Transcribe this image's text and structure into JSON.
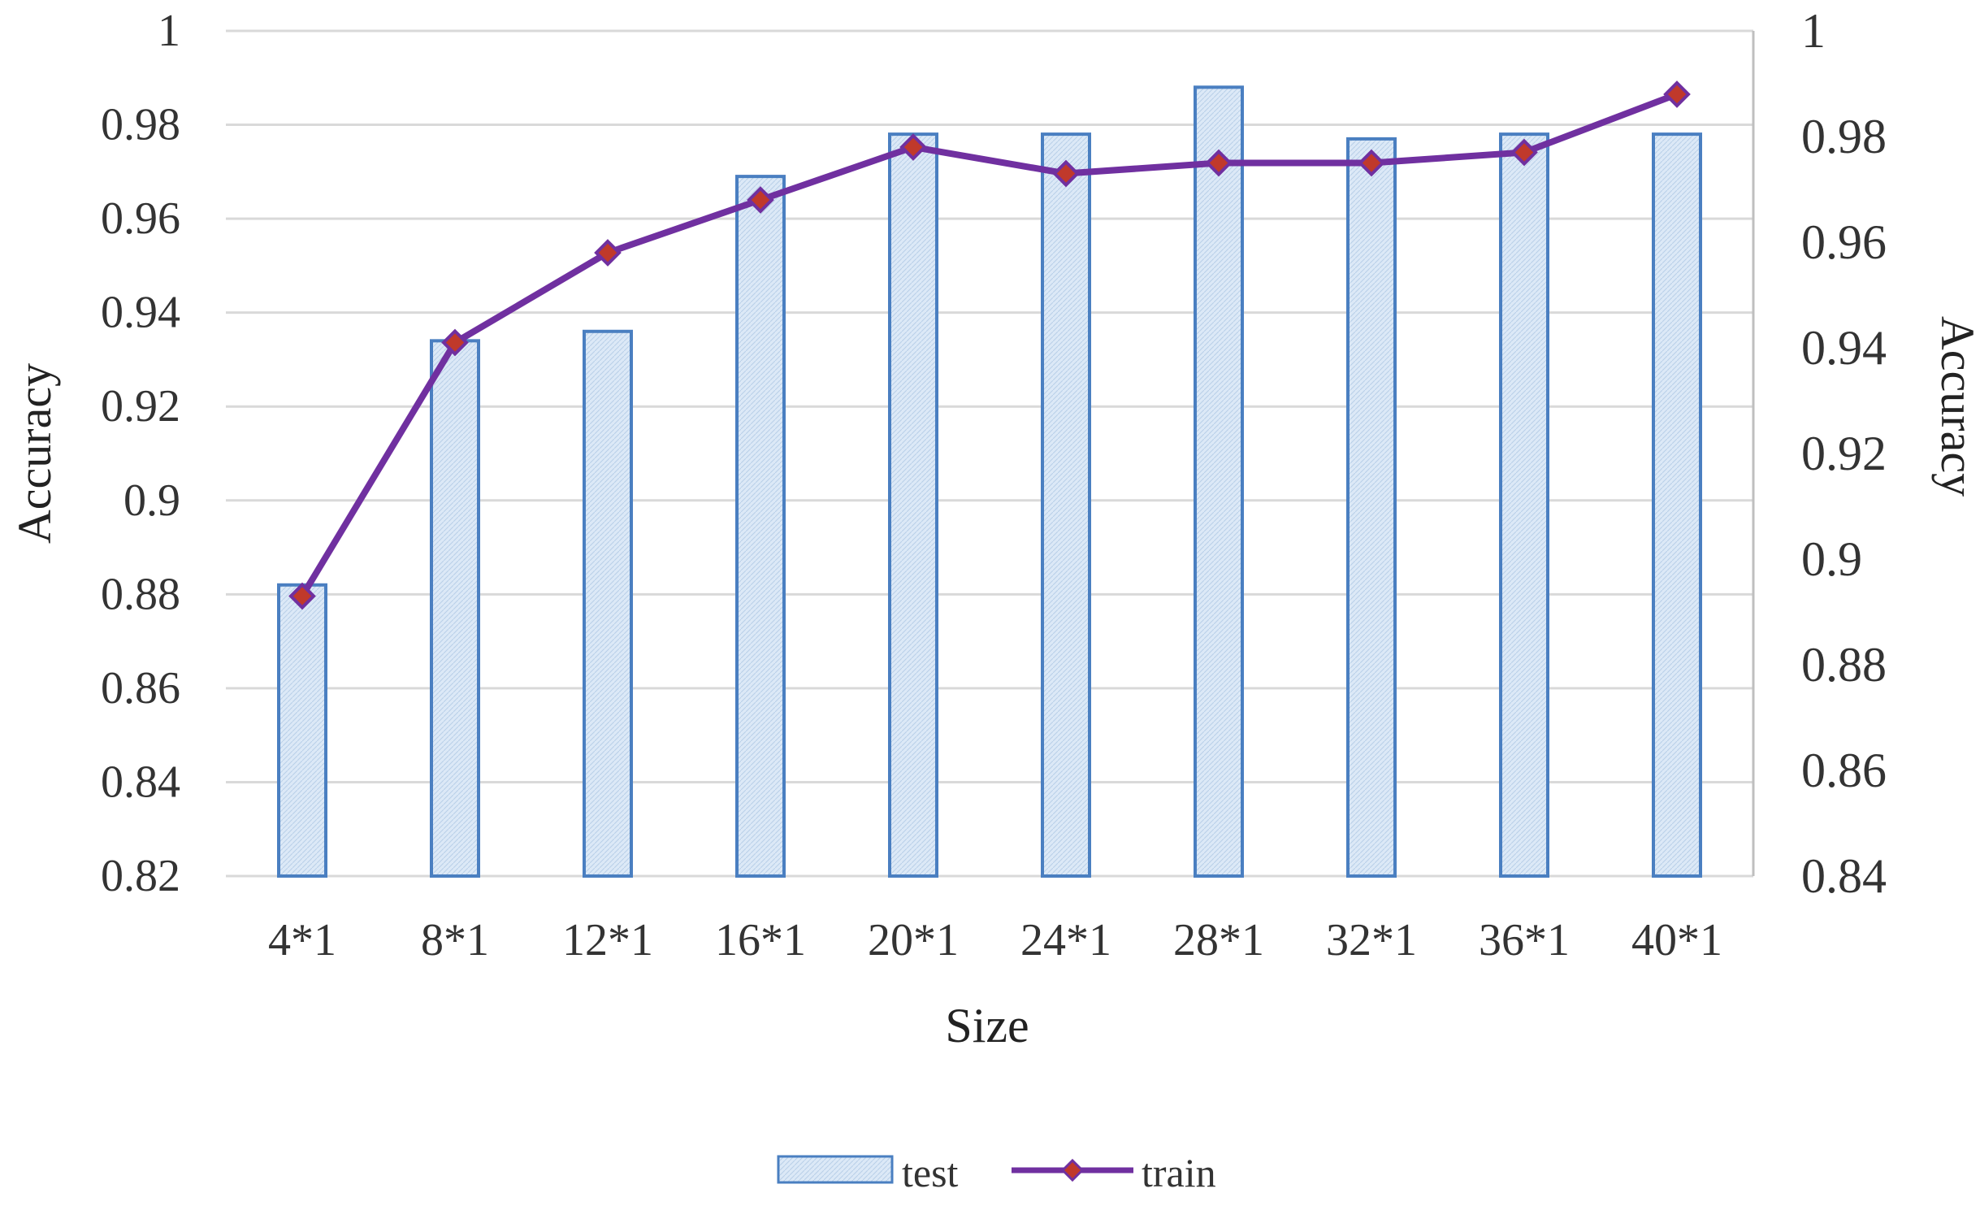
{
  "chart_data": {
    "type": "bar",
    "categories": [
      "4*1",
      "8*1",
      "12*1",
      "16*1",
      "20*1",
      "24*1",
      "28*1",
      "32*1",
      "36*1",
      "40*1"
    ],
    "series": [
      {
        "name": "test",
        "type": "bar",
        "axis": "left",
        "values": [
          0.882,
          0.934,
          0.936,
          0.969,
          0.978,
          0.978,
          0.988,
          0.977,
          0.978,
          0.978
        ],
        "color": "#4a7fc1",
        "fill": "#dce9f7"
      },
      {
        "name": "train",
        "type": "line",
        "axis": "right",
        "values": [
          0.893,
          0.941,
          0.958,
          0.968,
          0.978,
          0.973,
          0.975,
          0.975,
          0.977,
          0.988
        ],
        "color": "#7030a0",
        "marker_color": "#c0392b"
      }
    ],
    "xlabel": "Size",
    "ylabel": "Accuracy",
    "y2label": "Accuracy",
    "ylim": [
      0.82,
      1
    ],
    "y2lim": [
      0.84,
      1
    ],
    "yticks": [
      "0.82",
      "0.84",
      "0.86",
      "0.88",
      "0.9",
      "0.92",
      "0.94",
      "0.96",
      "0.98",
      "1"
    ],
    "y2ticks": [
      "0.84",
      "0.86",
      "0.88",
      "0.9",
      "0.92",
      "0.94",
      "0.96",
      "0.98",
      "1"
    ],
    "grid": true,
    "legend_position": "bottom"
  }
}
